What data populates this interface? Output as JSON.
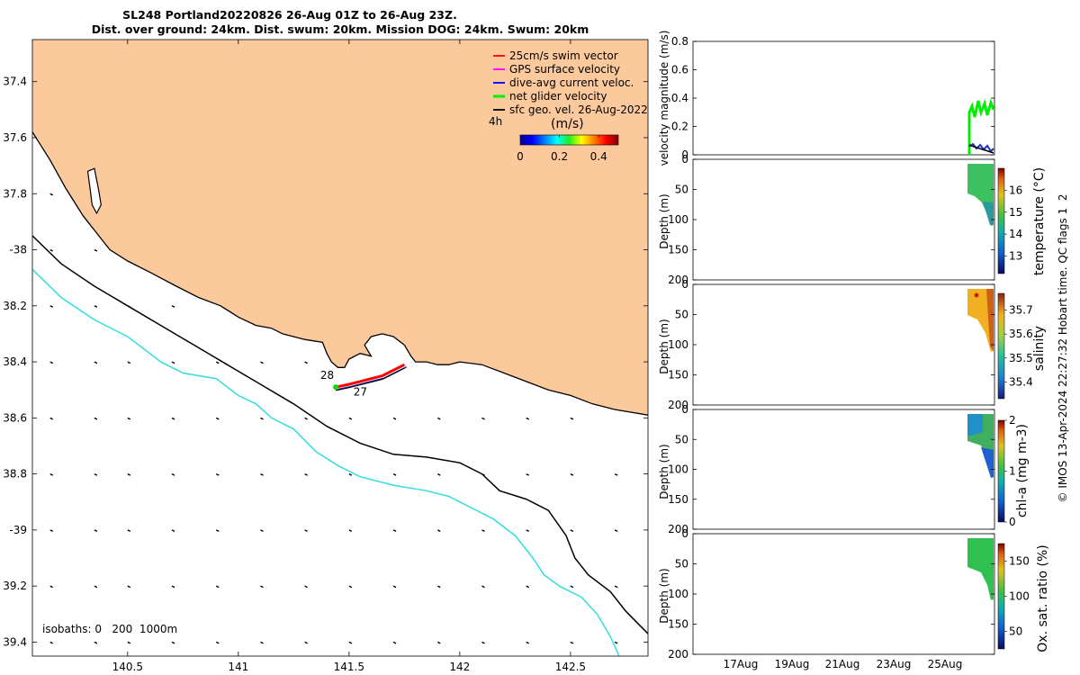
{
  "title": {
    "line1": "SL248 Portland20220826 26-Aug 01Z to 26-Aug 23Z.",
    "line2": "Dist. over ground: 24km. Dist. swum: 20km. Mission DOG: 24km. Swum: 20km"
  },
  "credit": "© IMOS 13-Apr-2024 22:27:32 Hobart time. QC flags 1  2",
  "colors": {
    "land": "#fcc99d",
    "coast": "#000000",
    "iso200": "#000000",
    "iso1000": "#33dddd",
    "track": "#ff0000"
  },
  "chart_data": [
    {
      "type": "scatter",
      "name": "map",
      "xlim": [
        140.07,
        142.85
      ],
      "ylim": [
        -39.45,
        -37.25
      ],
      "xticks": [
        140.5,
        141,
        141.5,
        142,
        142.5
      ],
      "xtick_labels": [
        "140.5",
        "141",
        "141.5",
        "142",
        "142.5"
      ],
      "yticks": [
        -37.4,
        -37.6,
        -37.8,
        -38,
        -38.2,
        -38.4,
        -38.6,
        -38.8,
        -39,
        -39.2,
        -39.4
      ],
      "ytick_labels": [
        "37.4",
        "37.6",
        "37.8",
        "-38",
        "38.2",
        "38.4",
        "38.6",
        "38.8",
        "-39",
        "39.2",
        "39.4"
      ],
      "coastline": [
        [
          140.07,
          -37.58
        ],
        [
          140.15,
          -37.68
        ],
        [
          140.22,
          -37.78
        ],
        [
          140.3,
          -37.88
        ],
        [
          140.37,
          -37.95
        ],
        [
          140.42,
          -38.0
        ],
        [
          140.5,
          -38.04
        ],
        [
          140.6,
          -38.08
        ],
        [
          140.72,
          -38.13
        ],
        [
          140.82,
          -38.17
        ],
        [
          140.92,
          -38.2
        ],
        [
          141.0,
          -38.24
        ],
        [
          141.08,
          -38.27
        ],
        [
          141.15,
          -38.28
        ],
        [
          141.2,
          -38.3
        ],
        [
          141.3,
          -38.32
        ],
        [
          141.38,
          -38.33
        ],
        [
          141.4,
          -38.37
        ],
        [
          141.42,
          -38.4
        ],
        [
          141.45,
          -38.42
        ],
        [
          141.48,
          -38.42
        ],
        [
          141.5,
          -38.39
        ],
        [
          141.55,
          -38.37
        ],
        [
          141.6,
          -38.38
        ],
        [
          141.57,
          -38.34
        ],
        [
          141.6,
          -38.31
        ],
        [
          141.65,
          -38.3
        ],
        [
          141.7,
          -38.31
        ],
        [
          141.75,
          -38.34
        ],
        [
          141.78,
          -38.38
        ],
        [
          141.8,
          -38.4
        ],
        [
          141.85,
          -38.4
        ],
        [
          141.9,
          -38.41
        ],
        [
          141.95,
          -38.41
        ],
        [
          142.0,
          -38.4
        ],
        [
          142.1,
          -38.41
        ],
        [
          142.2,
          -38.44
        ],
        [
          142.3,
          -38.47
        ],
        [
          142.4,
          -38.5
        ],
        [
          142.5,
          -38.52
        ],
        [
          142.6,
          -38.55
        ],
        [
          142.7,
          -38.57
        ],
        [
          142.85,
          -38.59
        ]
      ],
      "island": [
        [
          140.32,
          -37.72
        ],
        [
          140.35,
          -37.71
        ],
        [
          140.37,
          -37.79
        ],
        [
          140.38,
          -37.84
        ],
        [
          140.36,
          -37.87
        ],
        [
          140.34,
          -37.84
        ],
        [
          140.33,
          -37.78
        ]
      ],
      "isobath_200": [
        [
          140.07,
          -37.95
        ],
        [
          140.2,
          -38.05
        ],
        [
          140.35,
          -38.13
        ],
        [
          140.5,
          -38.2
        ],
        [
          140.65,
          -38.27
        ],
        [
          140.8,
          -38.34
        ],
        [
          140.95,
          -38.41
        ],
        [
          141.1,
          -38.48
        ],
        [
          141.25,
          -38.55
        ],
        [
          141.4,
          -38.63
        ],
        [
          141.55,
          -38.69
        ],
        [
          141.7,
          -38.73
        ],
        [
          141.85,
          -38.74
        ],
        [
          142.0,
          -38.76
        ],
        [
          142.1,
          -38.8
        ],
        [
          142.18,
          -38.86
        ],
        [
          142.3,
          -38.89
        ],
        [
          142.4,
          -38.93
        ],
        [
          142.48,
          -39.02
        ],
        [
          142.52,
          -39.1
        ],
        [
          142.58,
          -39.16
        ],
        [
          142.68,
          -39.22
        ],
        [
          142.75,
          -39.29
        ],
        [
          142.85,
          -39.37
        ]
      ],
      "isobath_1000": [
        [
          140.07,
          -38.07
        ],
        [
          140.2,
          -38.17
        ],
        [
          140.35,
          -38.25
        ],
        [
          140.5,
          -38.31
        ],
        [
          140.65,
          -38.4
        ],
        [
          140.75,
          -38.44
        ],
        [
          140.9,
          -38.46
        ],
        [
          141.0,
          -38.52
        ],
        [
          141.08,
          -38.55
        ],
        [
          141.15,
          -38.6
        ],
        [
          141.25,
          -38.64
        ],
        [
          141.35,
          -38.72
        ],
        [
          141.45,
          -38.77
        ],
        [
          141.55,
          -38.81
        ],
        [
          141.7,
          -38.84
        ],
        [
          141.85,
          -38.86
        ],
        [
          141.95,
          -38.88
        ],
        [
          142.05,
          -38.92
        ],
        [
          142.15,
          -38.96
        ],
        [
          142.25,
          -39.02
        ],
        [
          142.33,
          -39.1
        ],
        [
          142.38,
          -39.16
        ],
        [
          142.45,
          -39.2
        ],
        [
          142.55,
          -39.24
        ],
        [
          142.62,
          -39.3
        ],
        [
          142.68,
          -39.38
        ],
        [
          142.72,
          -39.45
        ]
      ],
      "glider_track": [
        [
          141.44,
          -38.49
        ],
        [
          141.5,
          -38.48
        ],
        [
          141.55,
          -38.47
        ],
        [
          141.6,
          -38.46
        ],
        [
          141.65,
          -38.45
        ],
        [
          141.7,
          -38.43
        ],
        [
          141.75,
          -38.41
        ]
      ],
      "track_labels": [
        {
          "text": "28",
          "x": 141.37,
          "y": -38.46
        },
        {
          "text": "27",
          "x": 141.52,
          "y": -38.52
        }
      ],
      "isobath_text": "isobaths: 0   200  1000m",
      "legend": {
        "placement": "top-right",
        "entries": [
          {
            "label": "25cm/s swim vector",
            "color": "#ff0000"
          },
          {
            "label": "GPS surface velocity",
            "color": "#ff00ff"
          },
          {
            "label": "dive-avg current veloc.",
            "color": "#0000ff"
          },
          {
            "label": "net glider velocity",
            "color": "#00ee00"
          },
          {
            "label": "sfc geo. vel. 26-Aug-2022",
            "color": "#000000"
          }
        ],
        "prefix": "4h"
      },
      "colorbar": {
        "label": "(m/s)",
        "range": [
          0,
          0.5
        ],
        "ticks": [
          0,
          0.2,
          0.4
        ],
        "tick_labels": [
          "0",
          "0.2",
          "0.4"
        ]
      }
    },
    {
      "type": "line",
      "name": "velocity",
      "ylabel": "velocity magnitude (m/s)",
      "ylim": [
        0,
        0.8
      ],
      "yticks": [
        0,
        0.2,
        0.4,
        0.6,
        0.8
      ],
      "ytick_labels": [
        "0",
        "0.2",
        "0.4",
        "0.6",
        "0.8"
      ]
    },
    {
      "type": "scatter",
      "name": "temperature",
      "ylabel": "Depth (m)",
      "ylim": [
        200,
        0
      ],
      "yticks": [
        0,
        50,
        100,
        150,
        200
      ],
      "ytick_labels": [
        "0",
        "50",
        "100",
        "150",
        "200"
      ],
      "colorbar": {
        "label": "temperature (°C)",
        "range": [
          12.2,
          17
        ],
        "ticks": [
          13,
          14,
          15,
          16
        ],
        "tick_labels": [
          "13",
          "14",
          "15",
          "16"
        ]
      }
    },
    {
      "type": "scatter",
      "name": "salinity",
      "ylabel": "Depth (m)",
      "ylim": [
        200,
        0
      ],
      "yticks": [
        0,
        50,
        100,
        150,
        200
      ],
      "ytick_labels": [
        "0",
        "50",
        "100",
        "150",
        "200"
      ],
      "colorbar": {
        "label": "salinity",
        "range": [
          35.33,
          35.77
        ],
        "ticks": [
          35.4,
          35.5,
          35.6,
          35.7
        ],
        "tick_labels": [
          "35.4",
          "35.5",
          "35.6",
          "35.7"
        ]
      }
    },
    {
      "type": "scatter",
      "name": "chla",
      "ylabel": "Depth (m)",
      "ylim": [
        200,
        0
      ],
      "yticks": [
        0,
        50,
        100,
        150,
        200
      ],
      "ytick_labels": [
        "0",
        "50",
        "100",
        "150",
        "200"
      ],
      "colorbar": {
        "label": "chl-a (mg m-3)",
        "range": [
          0,
          2
        ],
        "ticks": [
          0,
          1,
          2
        ],
        "tick_labels": [
          "0",
          "1",
          "2"
        ]
      }
    },
    {
      "type": "scatter",
      "name": "oxygen",
      "ylabel": "Depth (m)",
      "ylim": [
        200,
        0
      ],
      "yticks": [
        0,
        50,
        100,
        150,
        200
      ],
      "ytick_labels": [
        "0",
        "50",
        "100",
        "150",
        "200"
      ],
      "xtick_labels": [
        "17Aug",
        "19Aug",
        "21Aug",
        "23Aug",
        "25Aug"
      ],
      "colorbar": {
        "label": "Ox. sat. ratio (%)",
        "range": [
          25,
          175
        ],
        "ticks": [
          50,
          100,
          150
        ],
        "tick_labels": [
          "50",
          "100",
          "150"
        ]
      }
    }
  ]
}
